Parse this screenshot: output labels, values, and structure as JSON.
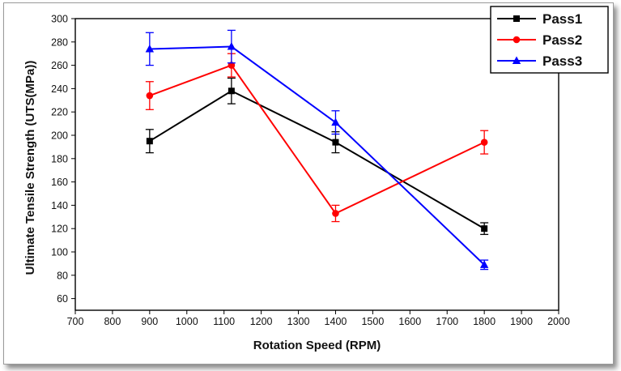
{
  "chart_data": {
    "type": "line",
    "xlabel": "Rotation Speed (RPM)",
    "ylabel": "Ultimate Tensile Strength (UTS(MPa))",
    "xlim": [
      700,
      2000
    ],
    "ylim": [
      50,
      300
    ],
    "xticks": [
      700,
      800,
      900,
      1000,
      1100,
      1200,
      1300,
      1400,
      1500,
      1600,
      1700,
      1800,
      1900,
      2000
    ],
    "yticks": [
      60,
      80,
      100,
      120,
      140,
      160,
      180,
      200,
      220,
      240,
      260,
      280,
      300
    ],
    "grid": false,
    "legend_position": "top-right",
    "x": [
      900,
      1120,
      1400,
      1800
    ],
    "series": [
      {
        "name": "Pass1",
        "color": "#000000",
        "marker": "square",
        "values": [
          195,
          238,
          194,
          120
        ],
        "errors": [
          10,
          11,
          9,
          5
        ]
      },
      {
        "name": "Pass2",
        "color": "#ff0000",
        "marker": "circle",
        "values": [
          234,
          260,
          133,
          194
        ],
        "errors": [
          12,
          10,
          7,
          10
        ]
      },
      {
        "name": "Pass3",
        "color": "#0000ff",
        "marker": "triangle",
        "values": [
          274,
          276,
          211,
          89
        ],
        "errors": [
          14,
          14,
          10,
          4
        ]
      }
    ]
  }
}
